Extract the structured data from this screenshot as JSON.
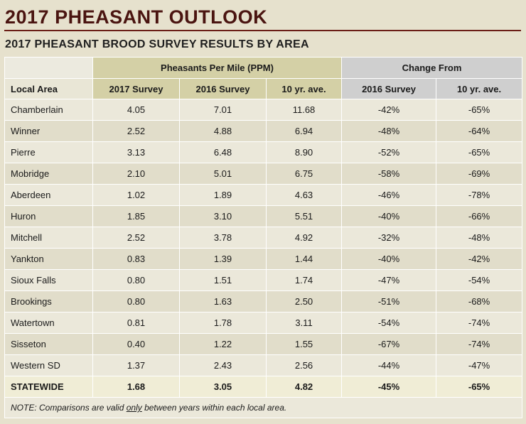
{
  "title": "2017 PHEASANT OUTLOOK",
  "subtitle": "2017 PHEASANT BROOD SURVEY RESULTS BY AREA",
  "table": {
    "group_headers": {
      "ppm": "Pheasants Per Mile (PPM)",
      "change": "Change From"
    },
    "columns": [
      "Local Area",
      "2017 Survey",
      "2016 Survey",
      "10 yr. ave.",
      "2016 Survey",
      "10 yr. ave."
    ],
    "rows": [
      [
        "Chamberlain",
        "4.05",
        "7.01",
        "11.68",
        "-42%",
        "-65%"
      ],
      [
        "Winner",
        "2.52",
        "4.88",
        "6.94",
        "-48%",
        "-64%"
      ],
      [
        "Pierre",
        "3.13",
        "6.48",
        "8.90",
        "-52%",
        "-65%"
      ],
      [
        "Mobridge",
        "2.10",
        "5.01",
        "6.75",
        "-58%",
        "-69%"
      ],
      [
        "Aberdeen",
        "1.02",
        "1.89",
        "4.63",
        "-46%",
        "-78%"
      ],
      [
        "Huron",
        "1.85",
        "3.10",
        "5.51",
        "-40%",
        "-66%"
      ],
      [
        "Mitchell",
        "2.52",
        "3.78",
        "4.92",
        "-32%",
        "-48%"
      ],
      [
        "Yankton",
        "0.83",
        "1.39",
        "1.44",
        "-40%",
        "-42%"
      ],
      [
        "Sioux Falls",
        "0.80",
        "1.51",
        "1.74",
        "-47%",
        "-54%"
      ],
      [
        "Brookings",
        "0.80",
        "1.63",
        "2.50",
        "-51%",
        "-68%"
      ],
      [
        "Watertown",
        "0.81",
        "1.78",
        "3.11",
        "-54%",
        "-74%"
      ],
      [
        "Sisseton",
        "0.40",
        "1.22",
        "1.55",
        "-67%",
        "-74%"
      ],
      [
        "Western SD",
        "1.37",
        "2.43",
        "2.56",
        "-44%",
        "-47%"
      ]
    ],
    "total": [
      "STATEWIDE",
      "1.68",
      "3.05",
      "4.82",
      "-45%",
      "-65%"
    ]
  },
  "note": {
    "before": "NOTE: Comparisons are valid ",
    "emphasis": "only",
    "after": " between years within each local area."
  }
}
